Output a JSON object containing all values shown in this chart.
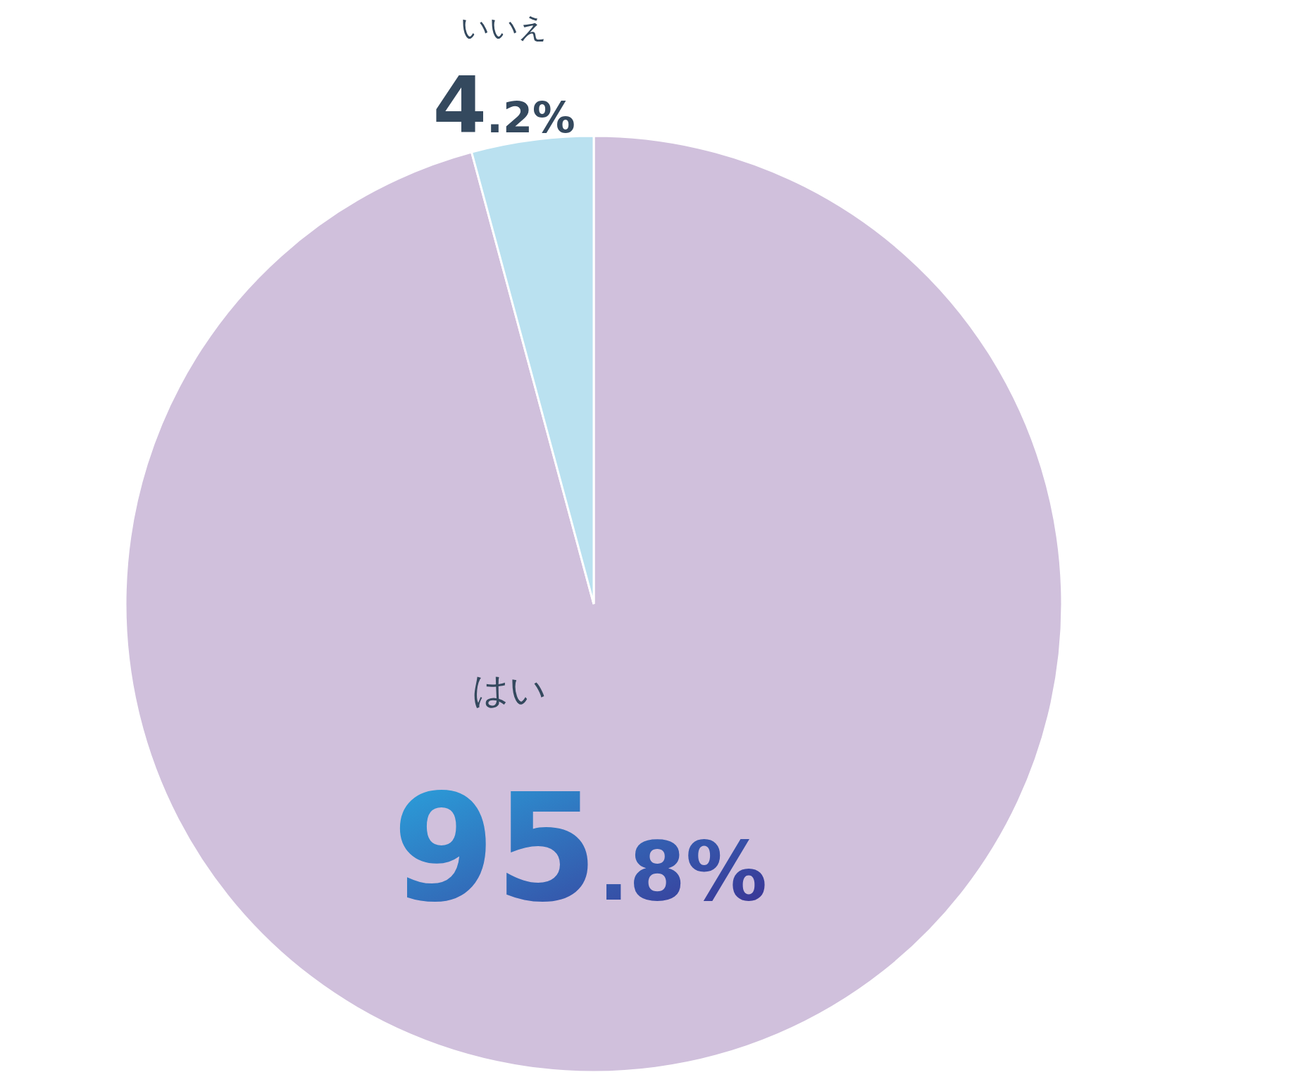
{
  "chart_data": {
    "type": "pie",
    "categories": [
      "はい",
      "いいえ"
    ],
    "values": [
      95.8,
      4.2
    ],
    "colors": [
      "#d0c0dc",
      "#bae1f0"
    ],
    "value_labels": [
      "95.8%",
      "4.2%"
    ]
  }
}
